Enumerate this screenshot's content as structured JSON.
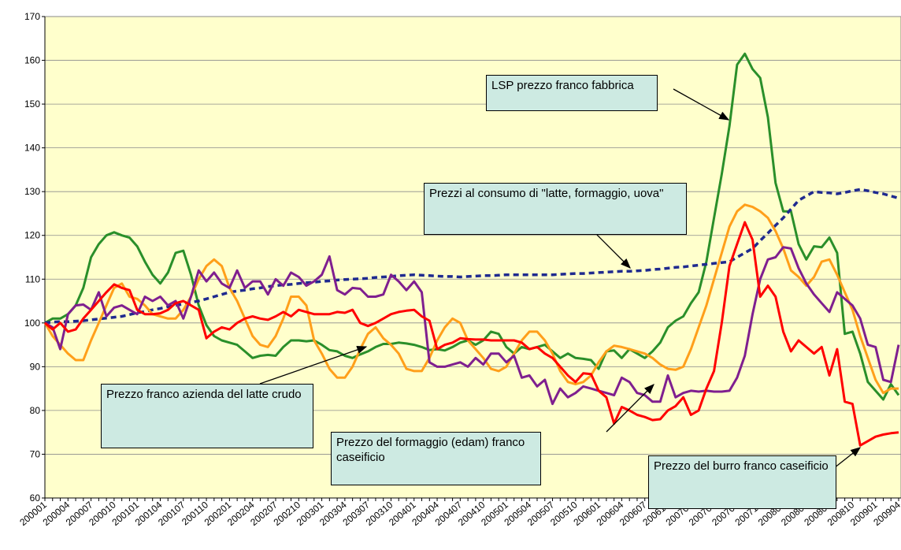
{
  "chart_data": {
    "type": "line",
    "categories": [
      "200001",
      null,
      null,
      "200004",
      null,
      null,
      "200007",
      null,
      null,
      "200010",
      null,
      null,
      "200101",
      null,
      null,
      "200104",
      null,
      null,
      "200107",
      null,
      null,
      "200110",
      null,
      null,
      "200201",
      null,
      null,
      "200204",
      null,
      null,
      "200207",
      null,
      null,
      "200210",
      null,
      null,
      "200301",
      null,
      null,
      "200304",
      null,
      null,
      "200307",
      null,
      null,
      "200310",
      null,
      null,
      "200401",
      null,
      null,
      "200404",
      null,
      null,
      "200407",
      null,
      null,
      "200410",
      null,
      null,
      "200501",
      null,
      null,
      "200504",
      null,
      null,
      "200507",
      null,
      null,
      "200510",
      null,
      null,
      "200601",
      null,
      null,
      "200604",
      null,
      null,
      "200607",
      null,
      null,
      "200610",
      null,
      null,
      "200701",
      null,
      null,
      "200704",
      null,
      null,
      "200707",
      null,
      null,
      "200710",
      null,
      null,
      "200801",
      null,
      null,
      "200804",
      null,
      null,
      "200807",
      null,
      null,
      "200810",
      null,
      null,
      "200901",
      null,
      null,
      "200904"
    ],
    "ylim": [
      60,
      170
    ],
    "yticks": [
      60,
      70,
      80,
      90,
      100,
      110,
      120,
      130,
      140,
      150,
      160,
      170
    ],
    "grid": true,
    "series": [
      {
        "name": "LSP prezzo franco fabbrica",
        "color": "#2a8f2a",
        "values": [
          100,
          101,
          101,
          102,
          104,
          108,
          115,
          118,
          120,
          120.7,
          120,
          119.5,
          117.5,
          114,
          111,
          109,
          111.5,
          116,
          116.5,
          111,
          104,
          99.5,
          97,
          96,
          95.5,
          95,
          93.5,
          92,
          92.5,
          92.7,
          92.5,
          94.5,
          96,
          96,
          95.8,
          96,
          95,
          93.8,
          93.5,
          92.5,
          92,
          92.8,
          93.5,
          94.5,
          95.2,
          95.2,
          95.5,
          95.3,
          95,
          94.5,
          93.8,
          94,
          93.7,
          94.5,
          95.5,
          96,
          95,
          96,
          98,
          97.5,
          94.5,
          93,
          94.5,
          94,
          94.5,
          95,
          93.5,
          92,
          93,
          92,
          91.8,
          91.5,
          89.5,
          93.5,
          93.7,
          92,
          94,
          93,
          92,
          93.5,
          95.5,
          99,
          100.5,
          101.5,
          104.5,
          107,
          114,
          124,
          134,
          145,
          159,
          161.5,
          158,
          156,
          147,
          132,
          125.5,
          125.5,
          118,
          114.5,
          117.5,
          117.3,
          119.5,
          116,
          97.5,
          98,
          93,
          86.5,
          84.5,
          82.5,
          86,
          83.5
        ]
      },
      {
        "name": "Prezzi al consumo di \"latte, formaggio, uova\"",
        "color": "#1f2a8f",
        "dashed": true,
        "values": [
          100,
          100.2,
          100.3,
          100.3,
          100.4,
          100.5,
          100.7,
          100.9,
          101.1,
          101.3,
          101.5,
          101.9,
          102.3,
          102.6,
          103,
          103.3,
          103.7,
          104,
          104.3,
          104.7,
          105,
          105.5,
          106,
          106.5,
          107,
          107.3,
          107.5,
          107.8,
          108,
          108.3,
          108.5,
          108.7,
          108.8,
          109,
          109.2,
          109.3,
          109.5,
          109.6,
          109.8,
          109.9,
          110,
          110.1,
          110.2,
          110.4,
          110.5,
          110.6,
          110.8,
          110.9,
          111,
          110.9,
          110.8,
          110.7,
          110.6,
          110.6,
          110.5,
          110.6,
          110.7,
          110.8,
          110.8,
          110.9,
          111,
          111,
          111,
          111,
          111,
          111,
          111,
          111.1,
          111.2,
          111.3,
          111.3,
          111.4,
          111.5,
          111.6,
          111.7,
          111.8,
          111.8,
          111.9,
          112,
          112.2,
          112.3,
          112.5,
          112.7,
          112.8,
          113,
          113.2,
          113.4,
          113.6,
          113.8,
          114,
          115,
          116,
          117,
          118.8,
          120.5,
          122.3,
          124,
          126,
          128,
          129,
          130,
          129.8,
          129.7,
          129.5,
          129.8,
          130.2,
          130.5,
          130.2,
          129.8,
          129.5,
          129,
          128.5
        ]
      },
      {
        "name": "Prezzo franco azienda del latte crudo",
        "color": "#ff9f1a",
        "values": [
          100,
          97,
          95,
          93,
          91.5,
          91.5,
          96,
          100,
          104,
          108,
          109,
          106,
          105.5,
          104,
          102,
          101.5,
          101,
          101,
          103,
          106,
          110,
          113,
          114.5,
          113,
          108,
          105,
          101,
          97,
          95,
          94.5,
          97,
          101,
          106,
          106,
          104,
          96,
          93,
          89.5,
          87.5,
          87.5,
          90,
          94,
          97.5,
          99,
          96.5,
          95,
          93,
          89.5,
          89,
          89,
          92,
          96,
          99,
          101,
          100,
          96,
          94,
          92,
          89.5,
          89,
          90,
          93,
          96,
          98,
          98,
          96,
          93,
          89,
          86.5,
          86,
          86.5,
          88,
          91,
          93.5,
          94.8,
          94.5,
          94,
          93.5,
          93,
          92,
          90.5,
          89.5,
          89.3,
          90,
          94,
          99,
          104,
          110,
          116,
          122,
          125.5,
          127,
          126.5,
          125.5,
          124,
          121,
          117,
          112,
          110.5,
          108.5,
          110.5,
          114,
          114.5,
          111,
          107,
          103,
          97,
          92,
          87,
          84,
          85,
          85
        ]
      },
      {
        "name": "Prezzo del formaggio (edam) franco caseificio",
        "color": "#7f1f8f",
        "values": [
          100,
          99,
          94,
          102,
          104,
          104.2,
          103,
          107,
          101.5,
          103.5,
          104,
          103,
          102,
          106,
          105,
          106,
          104,
          105,
          101,
          106,
          112,
          109.5,
          111.5,
          109,
          108,
          112,
          108,
          109.5,
          109.5,
          106.5,
          110,
          108.5,
          111.5,
          110.5,
          108.5,
          109.5,
          111,
          115.2,
          107.5,
          106.5,
          108,
          107.8,
          106,
          106,
          106.5,
          111,
          109.5,
          107.5,
          109.5,
          107,
          91,
          90,
          90,
          90.5,
          91,
          90,
          92,
          90.5,
          93,
          93,
          91,
          92.5,
          87.5,
          88,
          85.5,
          87,
          81.5,
          85,
          83,
          84,
          85.5,
          85,
          84.5,
          84,
          83.5,
          87.5,
          86.5,
          84,
          83.5,
          82,
          82,
          88,
          83,
          84,
          84.5,
          84.3,
          84.5,
          84.3,
          84.3,
          84.5,
          87.5,
          92.5,
          102,
          110,
          114.5,
          115,
          117.3,
          117,
          112.5,
          109,
          106.5,
          104.5,
          102.5,
          107,
          105.5,
          104,
          101,
          95,
          94.5,
          87,
          86.5,
          95
        ]
      },
      {
        "name": "Prezzo del burro franco caseificio",
        "color": "#ff0000",
        "values": [
          100,
          98.5,
          100,
          98,
          98.5,
          101,
          103,
          105,
          107,
          108.8,
          108,
          107.5,
          103,
          102,
          102,
          102.2,
          103,
          104.5,
          105,
          104,
          103,
          96.5,
          98,
          99,
          98.5,
          100,
          101,
          101.5,
          101,
          100.7,
          101.5,
          102.5,
          101.5,
          103,
          102.5,
          102,
          102,
          102,
          102.5,
          102.3,
          103,
          100,
          99.3,
          100,
          101,
          102,
          102.5,
          102.8,
          103,
          101.5,
          100.5,
          94,
          95,
          95.5,
          96.5,
          96.3,
          96.2,
          96.2,
          96,
          96,
          96,
          96,
          95.5,
          94,
          94.5,
          93,
          92,
          90,
          88,
          86.5,
          88.5,
          88.3,
          84.5,
          83,
          77,
          80.8,
          80,
          79,
          78.5,
          77.8,
          78,
          80,
          81,
          83,
          79,
          80,
          85,
          89,
          100,
          113,
          118,
          123,
          119,
          106,
          108.5,
          106,
          98,
          93.5,
          96,
          94.5,
          93,
          94.5,
          88,
          94,
          82,
          81.5,
          72,
          73,
          74,
          74.5,
          74.8,
          75
        ]
      }
    ]
  }
}
